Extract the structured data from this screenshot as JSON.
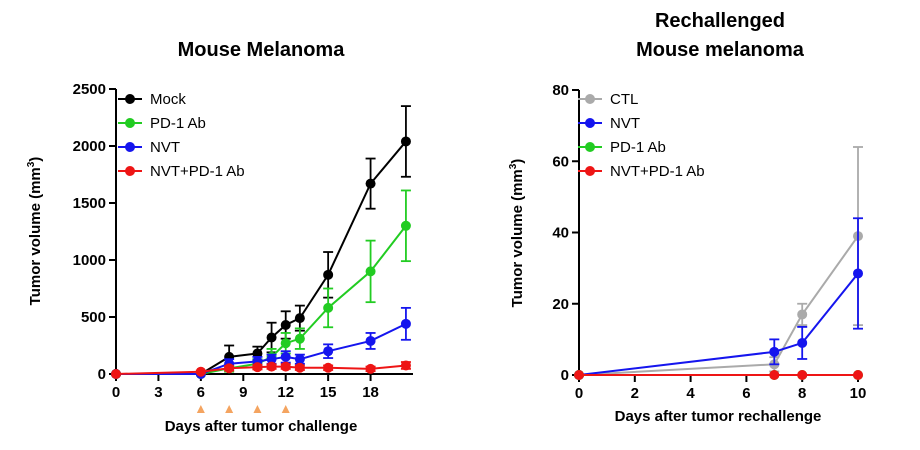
{
  "chart_data": [
    {
      "type": "line",
      "title": "Mouse Melanoma",
      "xlabel": "Days after tumor challenge",
      "ylabel_main": "Tumor volume (mm",
      "ylabel_sup": "3",
      "ylabel_tail": ")",
      "xlim": [
        0,
        21
      ],
      "ylim": [
        0,
        2500
      ],
      "xticks": [
        0,
        3,
        6,
        9,
        12,
        15,
        18
      ],
      "yticks": [
        0,
        500,
        1000,
        1500,
        2000,
        2500
      ],
      "legend_position": "top-left",
      "grid": false,
      "treatment_markers": {
        "x": [
          6,
          8,
          10,
          12
        ],
        "color": "#f4a460"
      },
      "series": [
        {
          "name": "Mock",
          "color": "#000000",
          "x": [
            0,
            6,
            8,
            10,
            11,
            12,
            13,
            15,
            18,
            20.5
          ],
          "y": [
            0,
            0,
            150,
            180,
            320,
            430,
            490,
            870,
            1670,
            2040
          ],
          "err": [
            0,
            0,
            100,
            60,
            130,
            120,
            110,
            200,
            220,
            310
          ]
        },
        {
          "name": "PD-1 Ab",
          "color": "#22cc22",
          "x": [
            0,
            6,
            8,
            10,
            11,
            12,
            13,
            15,
            18,
            20.5
          ],
          "y": [
            0,
            0,
            50,
            90,
            150,
            270,
            310,
            580,
            900,
            1300
          ],
          "err": [
            0,
            0,
            30,
            40,
            70,
            90,
            90,
            170,
            270,
            310
          ]
        },
        {
          "name": "NVT",
          "color": "#1515ee",
          "x": [
            0,
            6,
            8,
            10,
            11,
            12,
            13,
            15,
            18,
            20.5
          ],
          "y": [
            0,
            0,
            90,
            110,
            130,
            150,
            130,
            200,
            290,
            440
          ],
          "err": [
            0,
            0,
            40,
            40,
            40,
            50,
            40,
            60,
            70,
            140
          ]
        },
        {
          "name": "NVT+PD-1 Ab",
          "color": "#ee1515",
          "x": [
            0,
            6,
            8,
            10,
            11,
            12,
            13,
            15,
            18,
            20.5
          ],
          "y": [
            0,
            20,
            50,
            60,
            65,
            65,
            55,
            55,
            45,
            75
          ],
          "err": [
            0,
            10,
            20,
            20,
            20,
            20,
            20,
            20,
            20,
            30
          ]
        }
      ]
    },
    {
      "type": "line",
      "title_lines": [
        "Rechallenged",
        "Mouse melanoma"
      ],
      "xlabel": "Days after tumor rechallenge",
      "ylabel_main": "Tumor volume (mm",
      "ylabel_sup": "3",
      "ylabel_tail": ")",
      "xlim": [
        0,
        10
      ],
      "ylim": [
        0,
        80
      ],
      "xticks": [
        0,
        2,
        4,
        6,
        8,
        10
      ],
      "yticks": [
        0,
        20,
        40,
        60,
        80
      ],
      "legend_position": "top-left",
      "grid": false,
      "series": [
        {
          "name": "CTL",
          "color": "#aaaaaa",
          "x": [
            0,
            7,
            8,
            10
          ],
          "y": [
            0,
            3,
            17,
            39
          ],
          "err": [
            0,
            2,
            3,
            25
          ]
        },
        {
          "name": "NVT",
          "color": "#1515ee",
          "x": [
            0,
            7,
            8,
            10
          ],
          "y": [
            0,
            6.5,
            9,
            28.5
          ],
          "err": [
            0,
            3.5,
            4.5,
            15.5
          ]
        },
        {
          "name": "PD-1 Ab",
          "color": "#22cc22",
          "x": [
            0,
            7,
            8,
            10
          ],
          "y": [
            0,
            0,
            0,
            0
          ],
          "err": [
            0,
            0,
            0,
            0
          ]
        },
        {
          "name": "NVT+PD-1 Ab",
          "color": "#ee1515",
          "x": [
            0,
            7,
            8,
            10
          ],
          "y": [
            0,
            0,
            0,
            0
          ],
          "err": [
            0,
            0,
            0,
            0
          ]
        }
      ]
    }
  ]
}
